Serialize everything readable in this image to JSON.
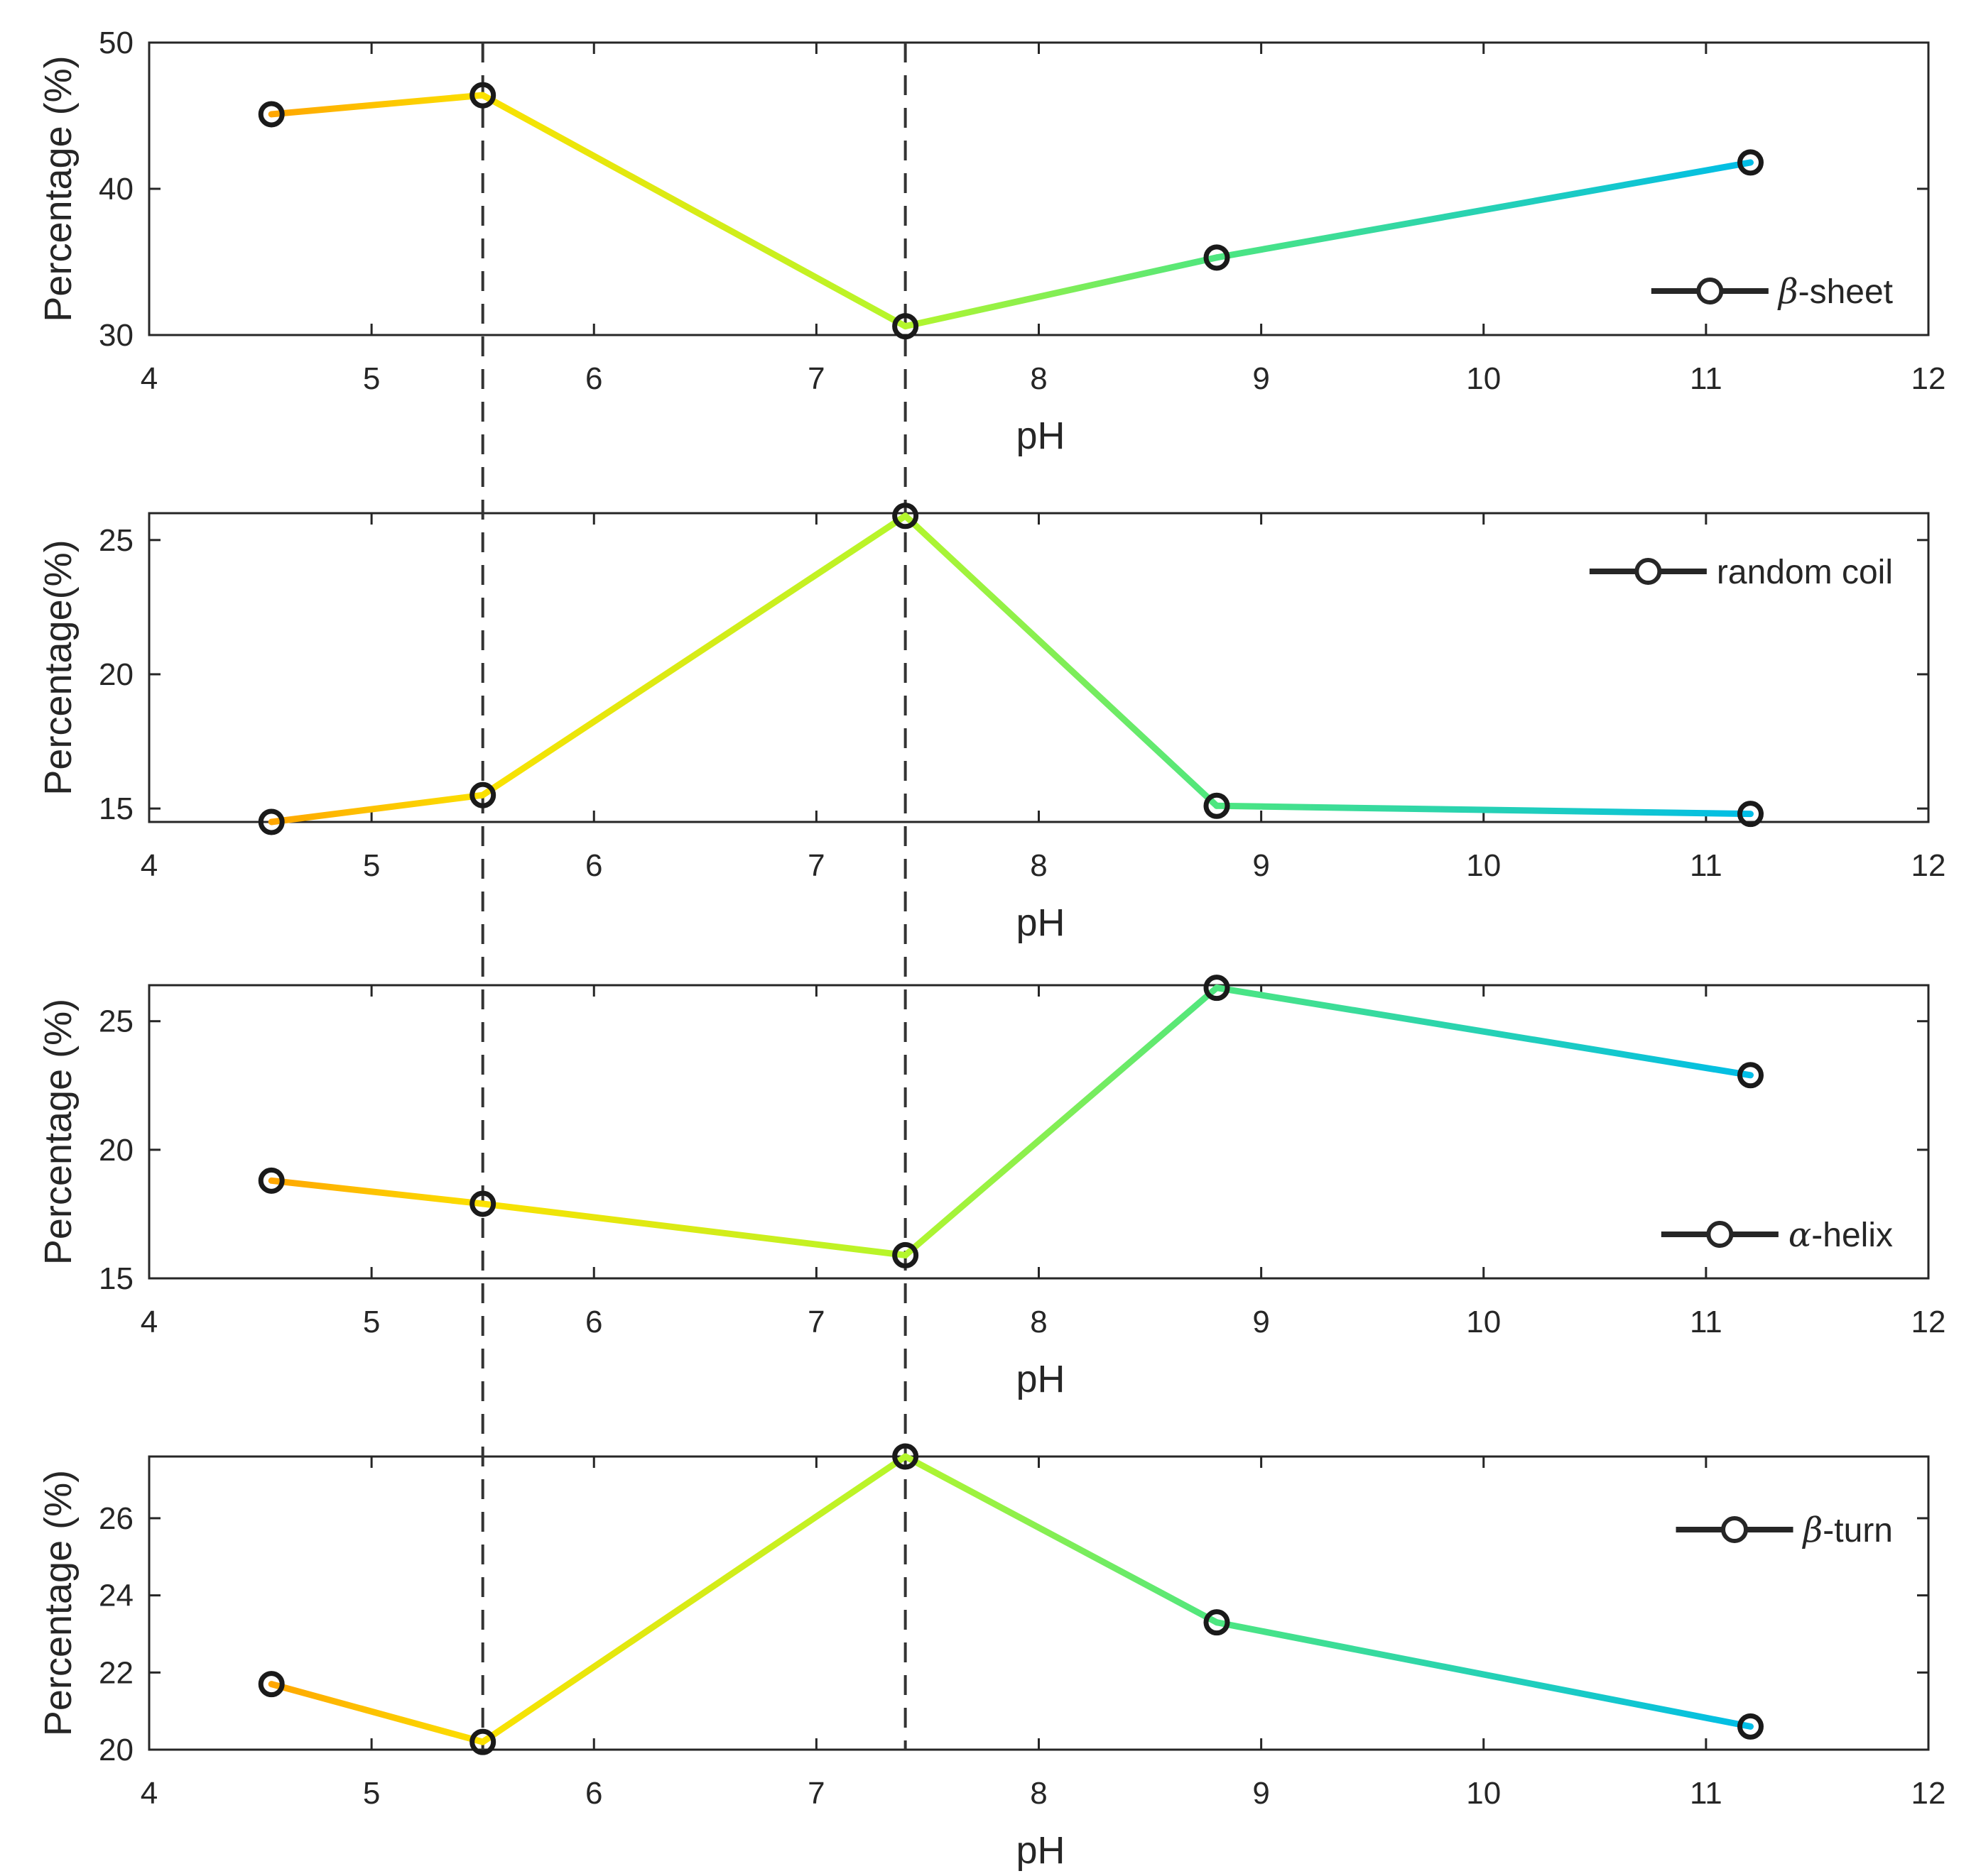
{
  "chart_data": [
    {
      "type": "line",
      "series": [
        {
          "name": "β-sheet",
          "values": [
            45.1,
            46.4,
            30.6,
            35.3,
            41.8
          ]
        }
      ],
      "x": [
        4.55,
        5.5,
        7.4,
        8.8,
        11.2
      ],
      "xlabel": "pH",
      "ylabel": "Percentage (%)",
      "xlim": [
        4,
        12
      ],
      "ylim": [
        30,
        50
      ],
      "xticks": [
        "4",
        "5",
        "6",
        "7",
        "8",
        "9",
        "10",
        "11",
        "12"
      ],
      "yticks": [
        "30",
        "40",
        "50"
      ],
      "legend": {
        "label_prefix": "β",
        "label_rest": "-sheet",
        "position": "bottom-right"
      },
      "grid": false
    },
    {
      "type": "line",
      "series": [
        {
          "name": "random coil",
          "values": [
            14.5,
            15.5,
            25.9,
            15.1,
            14.8
          ]
        }
      ],
      "x": [
        4.55,
        5.5,
        7.4,
        8.8,
        11.2
      ],
      "xlabel": "pH",
      "ylabel": "Percentage(%)",
      "xlim": [
        4,
        12
      ],
      "ylim": [
        14.5,
        26
      ],
      "xticks": [
        "4",
        "5",
        "6",
        "7",
        "8",
        "9",
        "10",
        "11",
        "12"
      ],
      "yticks": [
        "15",
        "20",
        "25"
      ],
      "legend": {
        "label_prefix": "",
        "label_rest": "random coil",
        "position": "top-right"
      },
      "grid": false
    },
    {
      "type": "line",
      "series": [
        {
          "name": "α-helix",
          "values": [
            18.8,
            17.9,
            15.9,
            26.3,
            22.9
          ]
        }
      ],
      "x": [
        4.55,
        5.5,
        7.4,
        8.8,
        11.2
      ],
      "xlabel": "pH",
      "ylabel": "Percentage (%)",
      "xlim": [
        4,
        12
      ],
      "ylim": [
        15,
        26.4
      ],
      "xticks": [
        "4",
        "5",
        "6",
        "7",
        "8",
        "9",
        "10",
        "11",
        "12"
      ],
      "yticks": [
        "15",
        "20",
        "25"
      ],
      "legend": {
        "label_prefix": "α",
        "label_rest": "-helix",
        "position": "bottom-right"
      },
      "grid": false
    },
    {
      "type": "line",
      "series": [
        {
          "name": "β-turn",
          "values": [
            21.7,
            20.2,
            27.6,
            23.3,
            20.6
          ]
        }
      ],
      "x": [
        4.55,
        5.5,
        7.4,
        8.8,
        11.2
      ],
      "xlabel": "pH",
      "ylabel": "Percentage (%)",
      "xlim": [
        4,
        12
      ],
      "ylim": [
        20,
        27.6
      ],
      "xticks": [
        "4",
        "5",
        "6",
        "7",
        "8",
        "9",
        "10",
        "11",
        "12"
      ],
      "yticks": [
        "20",
        "22",
        "24",
        "26"
      ],
      "legend": {
        "label_prefix": "β",
        "label_rest": "-turn",
        "position": "top-right"
      },
      "grid": false
    }
  ],
  "reference_lines_x": [
    5.5,
    7.4
  ],
  "colors": {
    "frame": "#262626",
    "marker": "#1a1a1a",
    "dashed_line": "#333333",
    "color_ramp": [
      "#ff7f00",
      "#ffdd00",
      "#dfff00",
      "#90ee50",
      "#20e0a0",
      "#00e6e6",
      "#0080e8"
    ]
  }
}
